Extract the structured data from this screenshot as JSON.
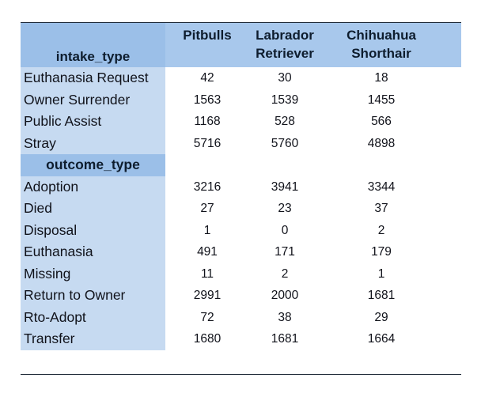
{
  "chart_data": {
    "type": "table",
    "row_header_title": "intake_type",
    "columns": [
      "Pitbulls",
      "Labrador\nRetriever",
      "Chihuahua\nShorthair"
    ],
    "sections": [
      {
        "title": "intake_type",
        "rows": [
          {
            "label": "Euthanasia Request",
            "values": [
              "42",
              "30",
              "18"
            ]
          },
          {
            "label": "Owner Surrender",
            "values": [
              "1563",
              "1539",
              "1455"
            ]
          },
          {
            "label": "Public Assist",
            "values": [
              "1168",
              "528",
              "566"
            ]
          },
          {
            "label": "Stray",
            "values": [
              "5716",
              "5760",
              "4898"
            ]
          }
        ]
      },
      {
        "title": "outcome_type",
        "rows": [
          {
            "label": "Adoption",
            "values": [
              "3216",
              "3941",
              "3344"
            ]
          },
          {
            "label": "Died",
            "values": [
              "27",
              "23",
              "37"
            ]
          },
          {
            "label": "Disposal",
            "values": [
              "1",
              "0",
              "2"
            ]
          },
          {
            "label": "Euthanasia",
            "values": [
              "491",
              "171",
              "179"
            ]
          },
          {
            "label": "Missing",
            "values": [
              "11",
              "2",
              "1"
            ]
          },
          {
            "label": "Return to Owner",
            "values": [
              "2991",
              "2000",
              "1681"
            ]
          },
          {
            "label": "Rto-Adopt",
            "values": [
              "72",
              "38",
              "29"
            ]
          },
          {
            "label": "Transfer",
            "values": [
              "1680",
              "1681",
              "1664"
            ]
          }
        ]
      }
    ]
  }
}
